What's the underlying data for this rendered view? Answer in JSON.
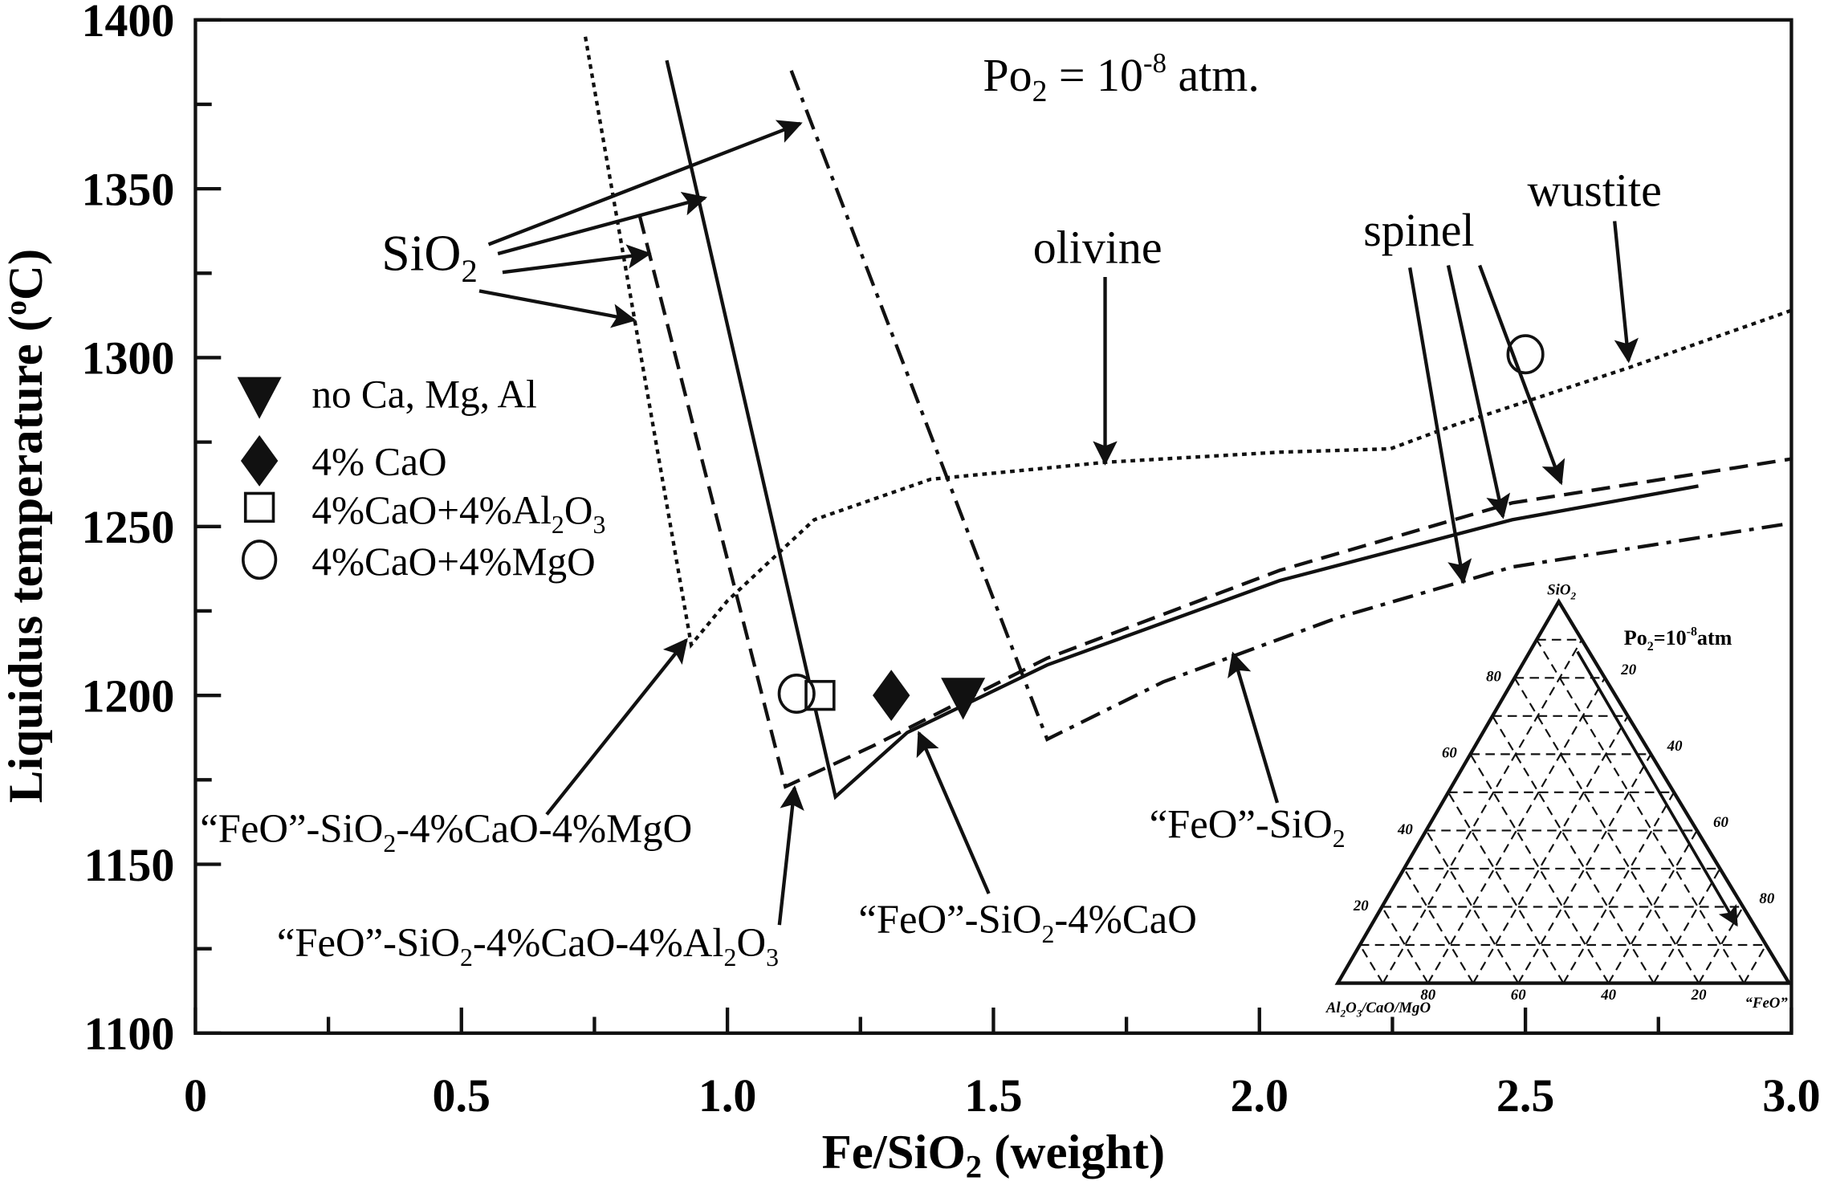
{
  "chart_data": {
    "type": "line",
    "xlabel": {
      "pre": "Fe/SiO",
      "sub": "2",
      "post": " (weight)"
    },
    "ylabel": {
      "pre": "Liquidus temperature (",
      "sup": "o",
      "post": "C)"
    },
    "xlim": [
      0,
      3.0
    ],
    "ylim": [
      1100,
      1400
    ],
    "xticks": [
      "0",
      "0.5",
      "1.0",
      "1.5",
      "2.0",
      "2.5",
      "3.0"
    ],
    "xtick_values": [
      0,
      0.5,
      1.0,
      1.5,
      2.0,
      2.5,
      3.0
    ],
    "yticks": [
      "1100",
      "1150",
      "1200",
      "1250",
      "1300",
      "1350",
      "1400"
    ],
    "ytick_values": [
      1100,
      1150,
      1200,
      1250,
      1300,
      1350,
      1400
    ],
    "grid": false,
    "title_annotation": {
      "pre": "Po",
      "sub": "2",
      "mid": " = 10",
      "sup": "-8",
      "post": " atm."
    },
    "series": [
      {
        "name": "“FeO”-SiO2-4%CaO-4%MgO",
        "style": "dotted",
        "label": {
          "pre": "“FeO”-SiO",
          "sub": "2",
          "post": "-4%CaO-4%MgO"
        },
        "points": [
          [
            0.733,
            1395
          ],
          [
            0.932,
            1215
          ],
          [
            1.0,
            1228
          ],
          [
            1.163,
            1252
          ],
          [
            1.382,
            1264
          ],
          [
            1.71,
            1269
          ],
          [
            2.038,
            1272
          ],
          [
            2.246,
            1273
          ],
          [
            2.366,
            1280
          ],
          [
            2.694,
            1297
          ],
          [
            3.0,
            1314
          ]
        ]
      },
      {
        "name": "“FeO”-SiO2-4%CaO-4%Al2O3",
        "style": "dashed",
        "label": {
          "pre": "“FeO”-SiO",
          "sub": "2",
          "mid": "-4%CaO-4%Al",
          "sub2": "2",
          "mid2": "O",
          "sub3": "3"
        },
        "points": [
          [
            0.835,
            1342
          ],
          [
            1.109,
            1173
          ],
          [
            1.273,
            1185
          ],
          [
            1.601,
            1211
          ],
          [
            2.038,
            1237
          ],
          [
            2.475,
            1257
          ],
          [
            3.0,
            1270
          ]
        ]
      },
      {
        "name": "“FeO”-SiO2-4%CaO",
        "style": "solid",
        "label": {
          "pre": "“FeO”-SiO",
          "sub": "2",
          "post": "-4%CaO"
        },
        "points": [
          [
            0.886,
            1388
          ],
          [
            1.203,
            1170
          ],
          [
            1.338,
            1189
          ],
          [
            1.601,
            1209
          ],
          [
            2.038,
            1234
          ],
          [
            2.475,
            1252
          ],
          [
            2.825,
            1262
          ]
        ]
      },
      {
        "name": "“FeO”-SiO2",
        "style": "dashdot",
        "label": {
          "pre": "“FeO”-SiO",
          "sub": "2"
        },
        "points": [
          [
            1.12,
            1385
          ],
          [
            1.601,
            1187
          ],
          [
            1.819,
            1204
          ],
          [
            2.147,
            1223
          ],
          [
            2.475,
            1238
          ],
          [
            3.0,
            1251
          ]
        ]
      }
    ],
    "markers": [
      {
        "name": "no Ca, Mg, Al",
        "symbol": "triangle-down",
        "x": 1.443,
        "y": 1199
      },
      {
        "name": "4% CaO",
        "symbol": "diamond",
        "x": 1.308,
        "y": 1200
      },
      {
        "name": "4%CaO+4%Al2O3",
        "symbol": "square",
        "x": 1.174,
        "y": 1200
      },
      {
        "name": "4%CaO+4%MgO",
        "symbol": "circle",
        "x": 1.13,
        "y": 1200.5
      },
      {
        "name": "4%CaO+4%MgO",
        "symbol": "circle",
        "x": 2.5,
        "y": 1301
      }
    ],
    "legend": [
      {
        "symbol": "triangle-down",
        "text": "no Ca, Mg, Al"
      },
      {
        "symbol": "diamond",
        "text": "4% CaO"
      },
      {
        "symbol": "square",
        "pre": "4%CaO+4%Al",
        "sub": "2",
        "mid": "O",
        "sub2": "3"
      },
      {
        "symbol": "circle",
        "text": "4%CaO+4%MgO"
      }
    ],
    "legend_placement": "left-middle",
    "annotations": {
      "sio2": {
        "pre": "SiO",
        "sub": "2"
      },
      "olivine": "olivine",
      "spinel": "spinel",
      "wustite": "wustite"
    },
    "inset": {
      "type": "ternary",
      "top": {
        "pre": "SiO",
        "sub": "2"
      },
      "left": {
        "pre": "Al",
        "sub": "2",
        "mid": "O",
        "sub2": "3",
        "post": "/CaO/MgO"
      },
      "right": "“FeO”",
      "condition": {
        "pre": "Po",
        "sub": "2",
        "mid": "=10",
        "sup": "-8",
        "post": "atm"
      },
      "left_ticks": [
        "80",
        "60",
        "40",
        "20"
      ],
      "right_ticks": [
        "20",
        "40",
        "60",
        "80"
      ],
      "bottom_ticks": [
        "80",
        "60",
        "40",
        "20"
      ]
    }
  }
}
